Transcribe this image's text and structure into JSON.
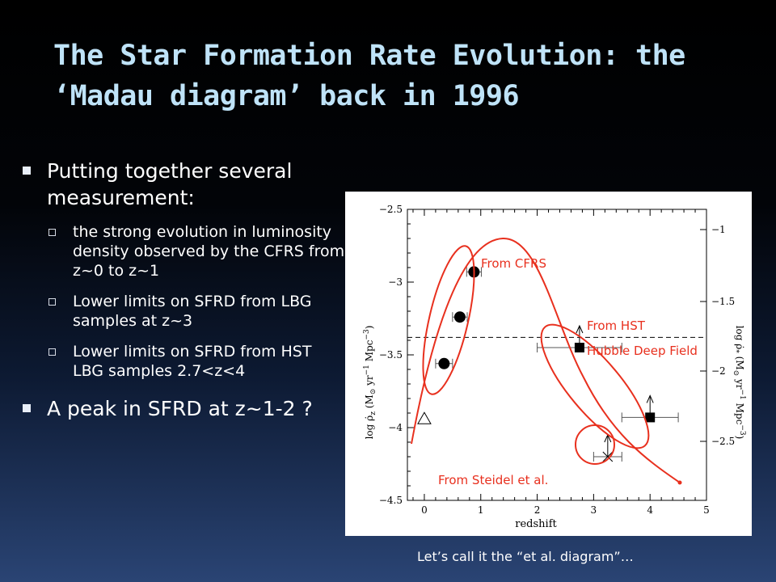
{
  "title_lines": [
    "The Star Formation Rate Evolution: the",
    "‘Madau diagram’ back in 1996"
  ],
  "bullets": {
    "b1": "Putting together several measurement:",
    "sub1": "the strong evolution in luminosity density observed by the CFRS from z~0 to z~1",
    "sub2": "Lower limits on SFRD from LBG samples at z~3",
    "sub3": "Lower limits on SFRD from HST LBG samples 2.7<z<4",
    "b2": "A peak in SFRD at z~1-2 ?"
  },
  "annotations": {
    "cfrs": "From CFRS",
    "hst1": "From HST",
    "hst2": "Hubble Deep Field",
    "steidel": "From Steidel et al."
  },
  "caption": "Let’s call it the “et al. diagram”…",
  "colors": {
    "annotation": "#e8301e",
    "title": "#bfe3f8"
  },
  "chart_data": {
    "type": "scatter",
    "xlabel": "redshift",
    "xlim": [
      -0.3,
      5.0
    ],
    "ylim": [
      -4.5,
      -2.5
    ],
    "x_ticks": [
      "0",
      "1",
      "2",
      "3",
      "4",
      "5"
    ],
    "y_ticks": [
      "−2.5",
      "−3",
      "−3.5",
      "−4",
      "−4.5"
    ],
    "y2_ticks": [
      "−1",
      "−1.5",
      "−2",
      "−2.5"
    ],
    "series": [
      {
        "marker": "circle",
        "points": [
          {
            "x": 0.35,
            "y": -3.56,
            "xerr": [
              0.15,
              0.15
            ]
          },
          {
            "x": 0.63,
            "y": -3.24,
            "xerr": [
              0.13,
              0.13
            ]
          },
          {
            "x": 0.88,
            "y": -2.93,
            "xerr": [
              0.13,
              0.13
            ]
          }
        ]
      },
      {
        "marker": "square",
        "points": [
          {
            "x": 2.75,
            "y": -3.45,
            "xerr": [
              0.75,
              0.75
            ],
            "lower_limit": true
          },
          {
            "x": 4.0,
            "y": -3.93,
            "xerr": [
              0.5,
              0.5
            ],
            "lower_limit": true
          }
        ]
      },
      {
        "marker": "cross",
        "points": [
          {
            "x": 3.25,
            "y": -4.2,
            "xerr": [
              0.25,
              0.25
            ],
            "lower_limit": true
          }
        ]
      },
      {
        "marker": "triangle",
        "points": [
          {
            "x": 0.0,
            "y": -3.94
          }
        ]
      }
    ],
    "reference_line_y": -3.38
  }
}
